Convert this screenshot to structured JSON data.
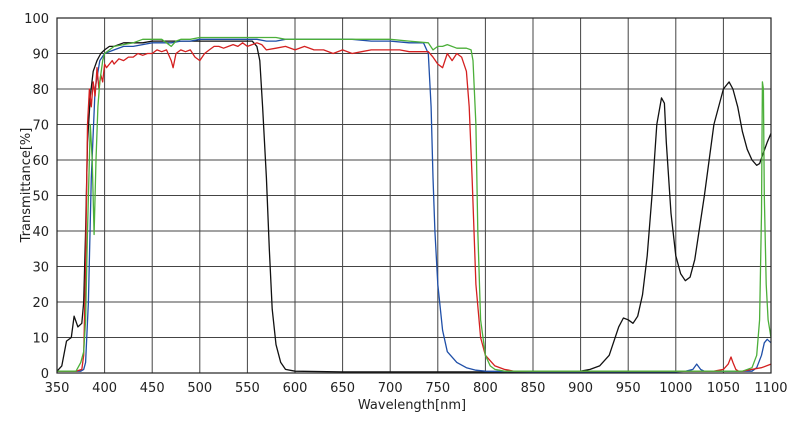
{
  "chart_data": {
    "type": "line",
    "xlabel": "Wavelength[nm]",
    "ylabel": "Transmittance[%]",
    "xlim": [
      350,
      1100
    ],
    "ylim": [
      0,
      100
    ],
    "xticks": [
      350,
      400,
      450,
      500,
      550,
      600,
      650,
      700,
      750,
      800,
      850,
      900,
      950,
      1000,
      1050,
      1100
    ],
    "yticks": [
      0,
      10,
      20,
      30,
      40,
      50,
      60,
      70,
      80,
      90,
      100
    ],
    "grid": true,
    "legend": "none",
    "series": [
      {
        "color": "#111111",
        "x": [
          350,
          355,
          360,
          365,
          368,
          372,
          376,
          378,
          380,
          382,
          385,
          388,
          392,
          396,
          400,
          405,
          410,
          420,
          430,
          440,
          450,
          460,
          470,
          480,
          490,
          500,
          510,
          520,
          530,
          540,
          550,
          555,
          560,
          563,
          566,
          570,
          573,
          576,
          580,
          585,
          590,
          600,
          650,
          700,
          750,
          800,
          850,
          900,
          910,
          920,
          930,
          940,
          945,
          950,
          955,
          960,
          965,
          970,
          975,
          980,
          985,
          988,
          990,
          995,
          1000,
          1005,
          1010,
          1015,
          1020,
          1030,
          1040,
          1050,
          1056,
          1060,
          1065,
          1070,
          1075,
          1080,
          1085,
          1088,
          1092,
          1096,
          1100
        ],
        "y": [
          0.5,
          2,
          9,
          10,
          16,
          13,
          14,
          20,
          40,
          65,
          78,
          85,
          88,
          90,
          91,
          92,
          92,
          93,
          93,
          93,
          93.5,
          93.5,
          93.5,
          93.5,
          93.5,
          93.5,
          93.5,
          93.5,
          93.5,
          93.5,
          93.5,
          93.5,
          92,
          88,
          75,
          55,
          35,
          18,
          8,
          3,
          1,
          0.5,
          0.3,
          0.3,
          0.3,
          0.3,
          0.3,
          0.5,
          1,
          2,
          5,
          13,
          15.5,
          15,
          14,
          16,
          22,
          33,
          50,
          70,
          77.5,
          76,
          65,
          45,
          33,
          28,
          26,
          27,
          32,
          50,
          70,
          80,
          82,
          80,
          75,
          68,
          63,
          60,
          58.5,
          59,
          62,
          65,
          67.5
        ]
      },
      {
        "color": "#1f4fa8",
        "x": [
          350,
          360,
          370,
          375,
          378,
          380,
          383,
          386,
          390,
          395,
          400,
          410,
          420,
          430,
          440,
          450,
          460,
          470,
          480,
          490,
          500,
          510,
          520,
          530,
          540,
          550,
          560,
          570,
          580,
          590,
          600,
          620,
          640,
          660,
          680,
          700,
          720,
          735,
          740,
          743,
          745,
          747,
          750,
          755,
          760,
          770,
          780,
          790,
          800,
          850,
          900,
          950,
          1000,
          1010,
          1018,
          1022,
          1026,
          1030,
          1050,
          1070,
          1080,
          1085,
          1090,
          1093,
          1096,
          1100
        ],
        "y": [
          0.5,
          0.5,
          0.5,
          0.5,
          1,
          3,
          20,
          55,
          80,
          88,
          90,
          91,
          92,
          92,
          92.5,
          93,
          93,
          93,
          93.5,
          93.5,
          94,
          94,
          94,
          94,
          94,
          94,
          94,
          93.5,
          93.5,
          94,
          94,
          94,
          94,
          94,
          93.5,
          93.5,
          93,
          93,
          90,
          75,
          55,
          40,
          25,
          12,
          6,
          3,
          1.5,
          0.8,
          0.5,
          0.3,
          0.3,
          0.3,
          0.3,
          0.5,
          1,
          2.5,
          1,
          0.5,
          0.5,
          0.5,
          0.5,
          1.5,
          5,
          8.5,
          9.5,
          8.5
        ]
      },
      {
        "color": "#d42020",
        "x": [
          350,
          370,
          376,
          378,
          380,
          382,
          384,
          386,
          388,
          390,
          392,
          394,
          396,
          398,
          400,
          402,
          405,
          408,
          410,
          415,
          420,
          425,
          430,
          435,
          440,
          445,
          450,
          455,
          460,
          465,
          470,
          472,
          475,
          480,
          485,
          490,
          495,
          500,
          505,
          510,
          515,
          520,
          525,
          530,
          535,
          540,
          545,
          550,
          555,
          560,
          565,
          570,
          580,
          590,
          600,
          610,
          620,
          630,
          640,
          650,
          660,
          670,
          680,
          690,
          700,
          710,
          720,
          730,
          740,
          745,
          750,
          755,
          760,
          765,
          770,
          775,
          780,
          783,
          786,
          788,
          790,
          795,
          800,
          810,
          820,
          825,
          830,
          840,
          850,
          900,
          950,
          1000,
          1040,
          1050,
          1055,
          1058,
          1060,
          1063,
          1066,
          1070,
          1080,
          1090,
          1100
        ],
        "y": [
          0.5,
          0.5,
          1,
          5,
          30,
          70,
          80,
          75,
          82,
          78,
          86,
          80,
          84,
          82,
          87,
          86,
          87,
          88,
          87,
          88.5,
          88,
          89,
          89,
          90,
          89.5,
          90,
          90,
          91,
          90.5,
          91,
          88,
          86,
          90,
          91,
          90.5,
          91,
          89,
          88,
          90,
          91,
          92,
          92,
          91.5,
          92,
          92.5,
          92,
          93,
          92,
          92.5,
          93,
          92.5,
          91,
          91.5,
          92,
          91,
          92,
          91,
          91,
          90,
          91,
          90,
          90.5,
          91,
          91,
          91,
          91,
          90.5,
          90.5,
          90.5,
          89,
          87,
          86,
          90,
          88,
          90,
          89,
          85,
          75,
          55,
          40,
          25,
          10,
          5,
          2,
          1,
          0.8,
          0.5,
          0.5,
          0.5,
          0.5,
          0.5,
          0.5,
          0.5,
          1,
          2.5,
          4.5,
          3,
          1,
          0.5,
          0.5,
          1,
          1.5,
          2.5
        ]
      },
      {
        "color": "#4caf3a",
        "x": [
          350,
          370,
          375,
          378,
          380,
          382,
          385,
          387,
          389,
          391,
          393,
          395,
          398,
          400,
          410,
          420,
          430,
          440,
          450,
          460,
          465,
          470,
          475,
          480,
          490,
          500,
          510,
          520,
          530,
          540,
          550,
          560,
          570,
          580,
          590,
          600,
          620,
          640,
          660,
          680,
          700,
          720,
          740,
          745,
          750,
          755,
          760,
          770,
          780,
          785,
          787,
          790,
          792,
          795,
          800,
          805,
          810,
          820,
          850,
          900,
          950,
          1000,
          1050,
          1070,
          1080,
          1085,
          1088,
          1090,
          1091,
          1092,
          1093,
          1095,
          1097,
          1100
        ],
        "y": [
          0.5,
          0.5,
          3,
          6,
          15,
          40,
          70,
          60,
          39,
          60,
          75,
          82,
          88,
          90,
          92,
          92.5,
          93,
          94,
          94,
          94,
          93,
          92,
          93.5,
          94,
          94,
          94.5,
          94.5,
          94.5,
          94.5,
          94.5,
          94.5,
          94.5,
          94.5,
          94.5,
          94,
          94,
          94,
          94,
          94,
          94,
          94,
          93.5,
          93,
          91,
          92,
          92,
          92.5,
          91.5,
          91.5,
          91,
          88,
          70,
          40,
          15,
          5,
          2,
          1,
          0.5,
          0.5,
          0.5,
          0.5,
          0.5,
          0.5,
          0.5,
          1.5,
          5,
          15,
          45,
          82,
          80,
          50,
          25,
          15,
          10
        ]
      }
    ]
  }
}
